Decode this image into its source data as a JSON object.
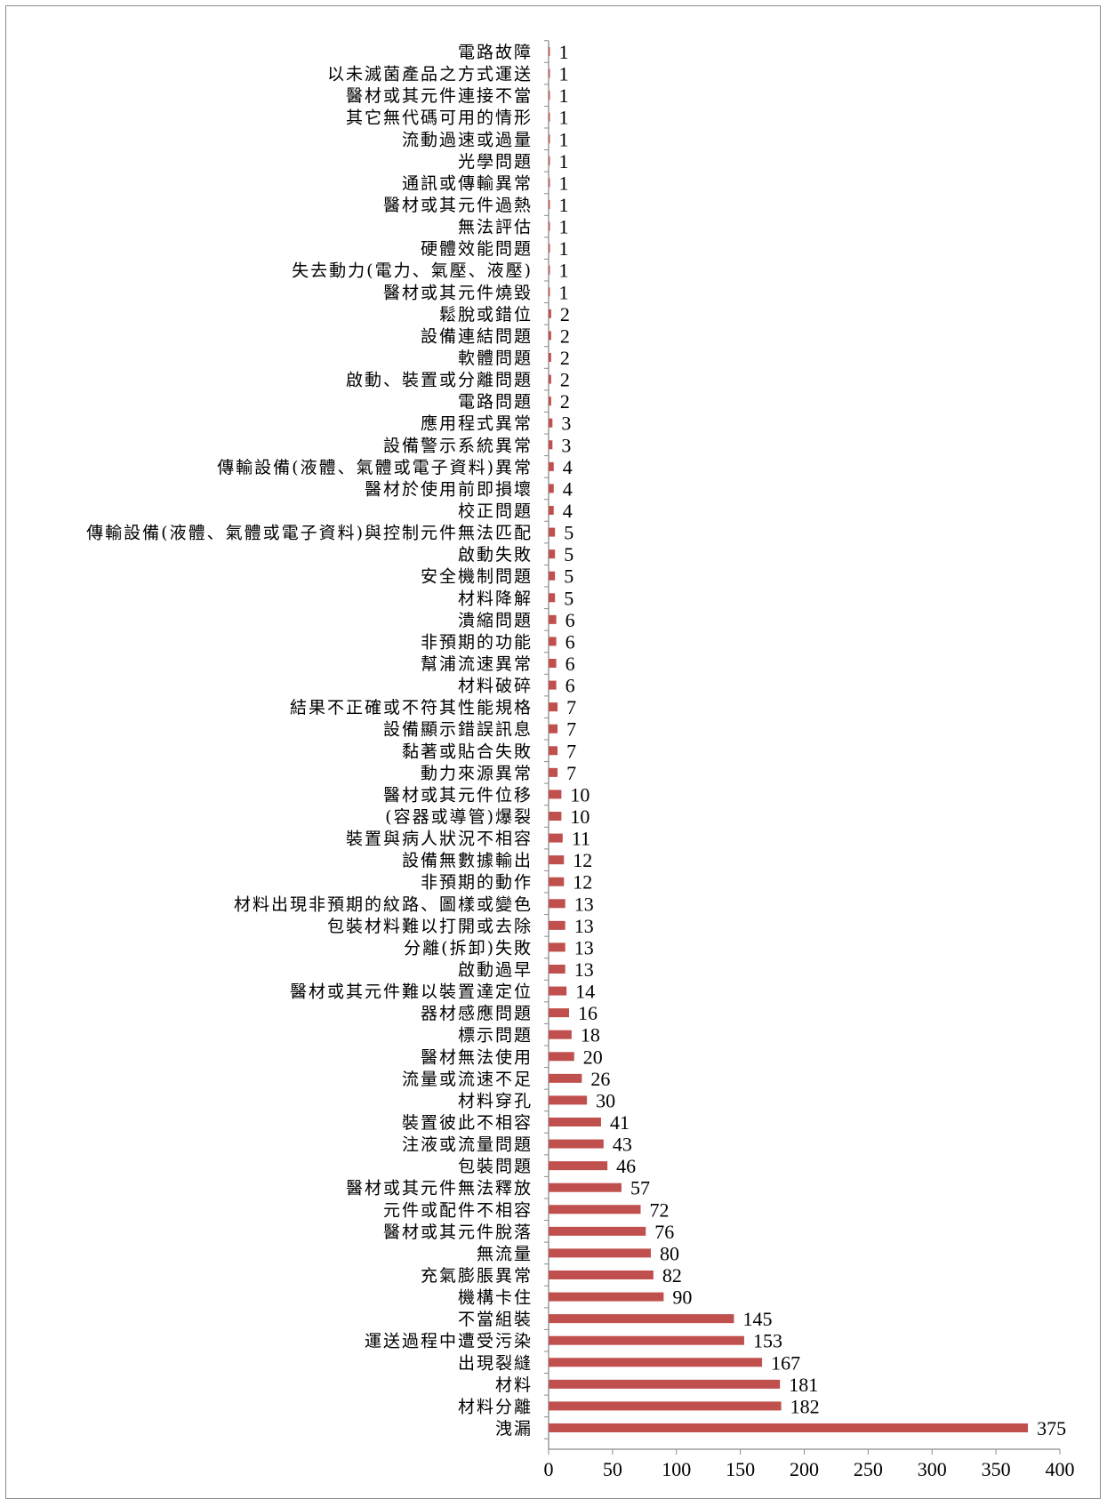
{
  "chart_data": {
    "type": "bar",
    "orientation": "horizontal",
    "title": "",
    "xlabel": "",
    "ylabel": "",
    "xlim": [
      0,
      400
    ],
    "xticks": [
      0,
      50,
      100,
      150,
      200,
      250,
      300,
      350,
      400
    ],
    "grid": false,
    "legend": "none",
    "bar_color": "#c0504d",
    "categories": [
      "電路故障",
      "以未滅菌產品之方式運送",
      "醫材或其元件連接不當",
      "其它無代碼可用的情形",
      "流動過速或過量",
      "光學問題",
      "通訊或傳輸異常",
      "醫材或其元件過熱",
      "無法評估",
      "硬體效能問題",
      "失去動力(電力、氣壓、液壓)",
      "醫材或其元件燒毀",
      "鬆脫或錯位",
      "設備連結問題",
      "軟體問題",
      "啟動、裝置或分離問題",
      "電路問題",
      "應用程式異常",
      "設備警示系統異常",
      "傳輸設備(液體、氣體或電子資料)異常",
      "醫材於使用前即損壞",
      "校正問題",
      "傳輸設備(液體、氣體或電子資料)與控制元件無法匹配",
      "啟動失敗",
      "安全機制問題",
      "材料降解",
      "潰縮問題",
      "非預期的功能",
      "幫浦流速異常",
      "材料破碎",
      "結果不正確或不符其性能規格",
      "設備顯示錯誤訊息",
      "黏著或貼合失敗",
      "動力來源異常",
      "醫材或其元件位移",
      "(容器或導管)爆裂",
      "裝置與病人狀況不相容",
      "設備無數據輸出",
      "非預期的動作",
      "材料出現非預期的紋路、圖樣或變色",
      "包裝材料難以打開或去除",
      "分離(拆卸)失敗",
      "啟動過早",
      "醫材或其元件難以裝置達定位",
      "器材感應問題",
      "標示問題",
      "醫材無法使用",
      "流量或流速不足",
      "材料穿孔",
      "裝置彼此不相容",
      "注液或流量問題",
      "包裝問題",
      "醫材或其元件無法釋放",
      "元件或配件不相容",
      "醫材或其元件脫落",
      "無流量",
      "充氣膨脹異常",
      "機構卡住",
      "不當組裝",
      "運送過程中遭受污染",
      "出現裂縫",
      "材料",
      "材料分離",
      "洩漏"
    ],
    "values": [
      1,
      1,
      1,
      1,
      1,
      1,
      1,
      1,
      1,
      1,
      1,
      1,
      2,
      2,
      2,
      2,
      2,
      3,
      3,
      4,
      4,
      4,
      5,
      5,
      5,
      5,
      6,
      6,
      6,
      6,
      7,
      7,
      7,
      7,
      10,
      10,
      11,
      12,
      12,
      13,
      13,
      13,
      13,
      14,
      16,
      18,
      20,
      26,
      30,
      41,
      43,
      46,
      57,
      72,
      76,
      80,
      82,
      90,
      145,
      153,
      167,
      181,
      182,
      375
    ]
  }
}
